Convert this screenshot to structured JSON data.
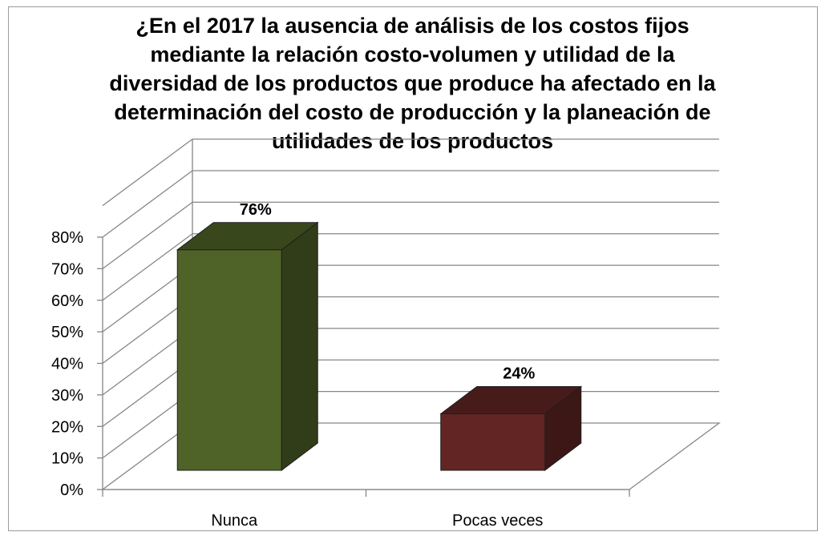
{
  "chart_data": {
    "type": "bar",
    "title_lines": [
      "¿En el 2017 la ausencia de análisis  de los costos fijos",
      "mediante la relación  costo-volumen y utilidad  de la",
      "diversidad de los productos que produce  ha afectado en la",
      "determinación del costo de producción y  la planeación de",
      "utilidades de los productos"
    ],
    "categories": [
      "Nunca",
      "Pocas veces"
    ],
    "values": [
      0.76,
      0.24
    ],
    "data_labels": [
      "76%",
      "24%"
    ],
    "colors": [
      "#4f6228",
      "#632523"
    ],
    "y_ticks": [
      "0%",
      "10%",
      "20%",
      "30%",
      "40%",
      "50%",
      "60%",
      "70%",
      "80%"
    ],
    "ylim": [
      0,
      0.8
    ],
    "grid": true,
    "legend": false,
    "projection": "3d-perspective"
  }
}
